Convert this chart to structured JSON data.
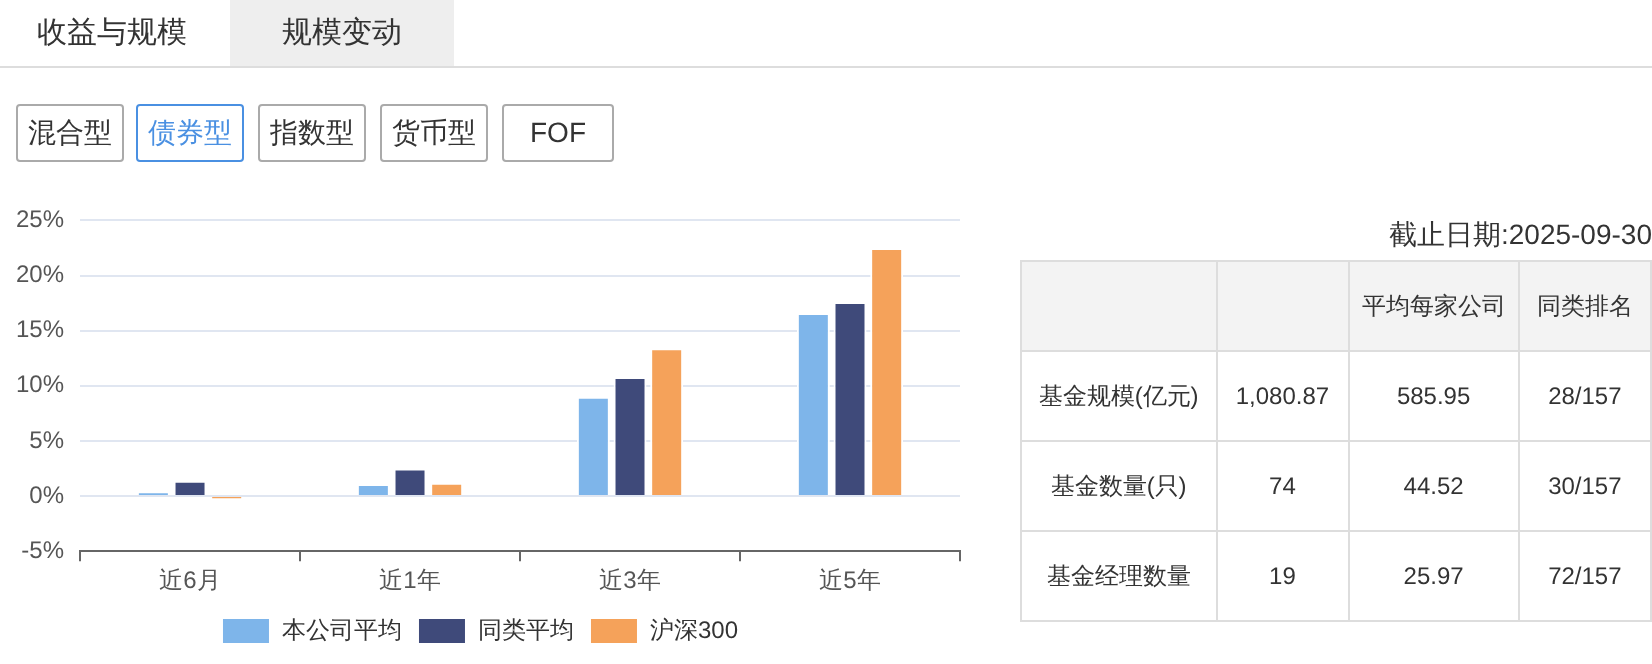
{
  "chart_data": [
    {
      "type": "other",
      "categories": [
        "收益与规模",
        "规模变动"
      ],
      "annotations": [
        "混合型",
        "债券型",
        "指数型",
        "货币型",
        "FOF"
      ]
    },
    {
      "type": "bar",
      "categories": [
        "近6月",
        "近1年",
        "近3年",
        "近5年"
      ],
      "series": [
        {
          "name": "本公司平均",
          "color": "#7eb5ea",
          "values": [
            0.4,
            1.1,
            9.0,
            16.6
          ]
        },
        {
          "name": "同类平均",
          "color": "#3f4a7a",
          "values": [
            1.4,
            2.5,
            10.8,
            17.6
          ]
        },
        {
          "name": "沪深300",
          "color": "#f5a25a",
          "values": [
            -0.3,
            1.2,
            13.4,
            22.5
          ]
        }
      ],
      "ylim": [
        -5,
        25
      ],
      "yticks": [
        {
          "value": -5,
          "label": "-5%"
        },
        {
          "value": 0,
          "label": "0%"
        },
        {
          "value": 5,
          "label": "5%"
        },
        {
          "value": 10,
          "label": "10%"
        },
        {
          "value": 15,
          "label": "15%"
        },
        {
          "value": 20,
          "label": "20%"
        },
        {
          "value": 25,
          "label": "25%"
        }
      ],
      "grid": "y",
      "legend": "bottom"
    },
    {
      "type": "other",
      "title": "截止日期:2025-09-30",
      "categories": [
        null,
        "平均每家公司",
        "同类排名"
      ],
      "y_categories": [
        "基金规模(亿元)",
        "基金数量(只)",
        "基金经理数量"
      ],
      "cell_labels": [
        [
          "1,080.87",
          "585.95",
          "28/157"
        ],
        [
          "74",
          "44.52",
          "30/157"
        ],
        [
          "19",
          "25.97",
          "72/157"
        ]
      ]
    }
  ]
}
